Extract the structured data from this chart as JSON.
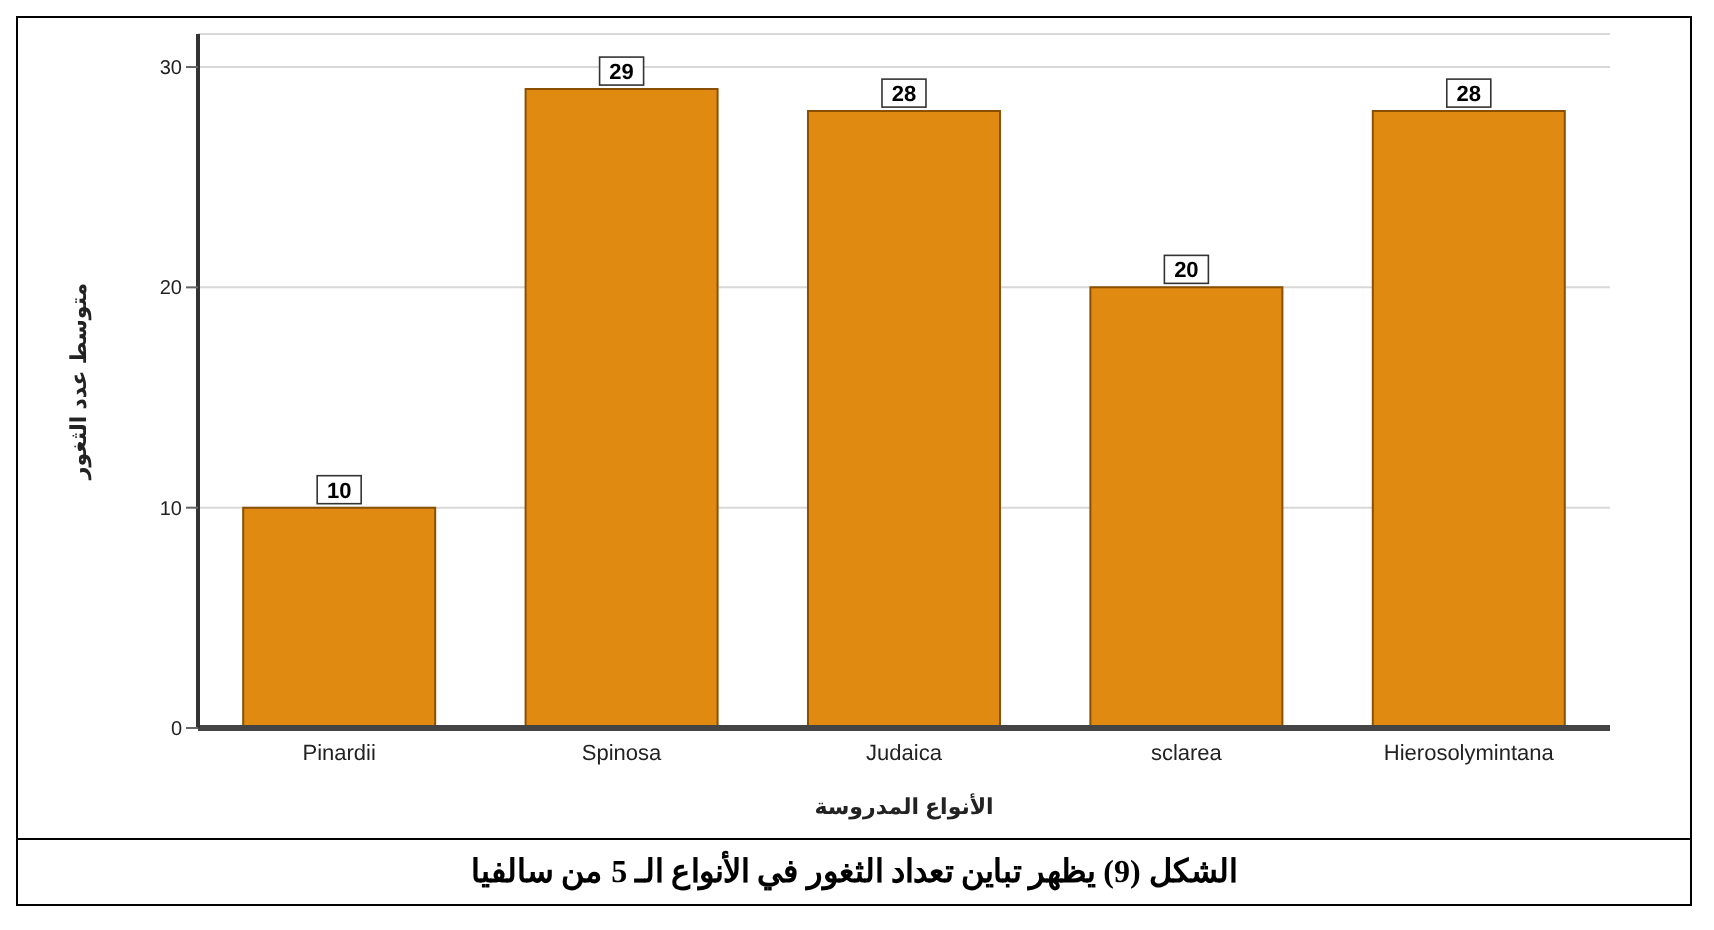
{
  "chart_data": {
    "type": "bar",
    "xlabel": "الأنواع المدروسة",
    "ylabel": "متوسط عدد الثغور",
    "categories": [
      "Pinardii",
      "Spinosa",
      "Judaica",
      "sclarea",
      "Hierosolymintana"
    ],
    "values": [
      10,
      29,
      28,
      20,
      28
    ],
    "color": "#e08a12",
    "ylim": [
      0,
      31.5
    ],
    "yticks": [
      0,
      10,
      20,
      30
    ],
    "grid": "y",
    "data_labels": true,
    "annotations": [
      "الشكل (9) يظهر تباين تعداد الثغور في الأنواع الـ 5 من سالفيا"
    ]
  }
}
